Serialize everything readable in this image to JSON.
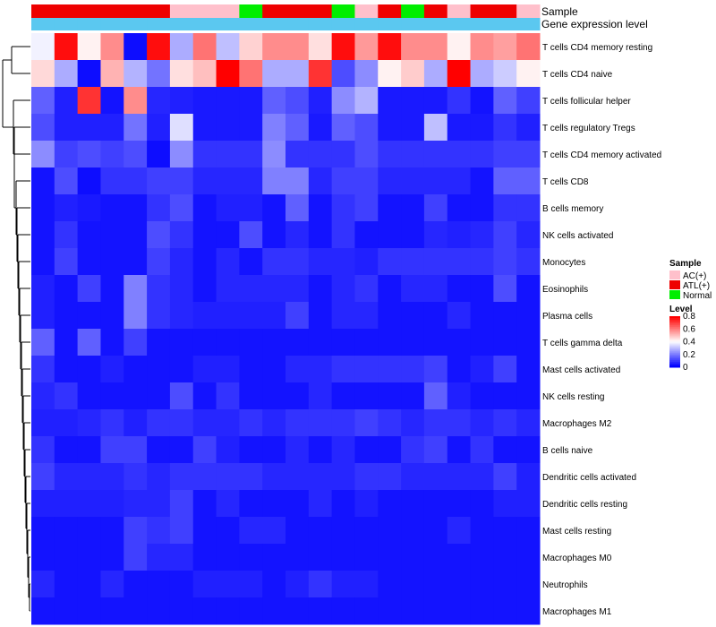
{
  "chart_data": {
    "type": "heatmap",
    "title": "",
    "annotation_labels": {
      "sample": "Sample",
      "gene_expression": "Gene expression level"
    },
    "sample_groups": [
      "ATL(+)",
      "ATL(+)",
      "ATL(+)",
      "ATL(+)",
      "ATL(+)",
      "ATL(+)",
      "AC(+)",
      "AC(+)",
      "AC(+)",
      "Normal",
      "ATL(+)",
      "ATL(+)",
      "ATL(+)",
      "Normal",
      "AC(+)",
      "ATL(+)",
      "Normal",
      "ATL(+)",
      "AC(+)",
      "ATL(+)",
      "ATL(+)",
      "AC(+)"
    ],
    "rows": [
      "T cells CD4 memory resting",
      "T cells CD4 naive",
      "T cells follicular helper",
      "T cells regulatory  Tregs",
      "T cells CD4 memory activated",
      "T cells CD8",
      "B cells memory",
      "NK cells activated",
      "Monocytes",
      "Eosinophils",
      "Plasma cells",
      "T cells gamma delta",
      "Mast cells activated",
      "NK cells resting",
      "Macrophages M2",
      "B cells naive",
      "Dendritic cells activated",
      "Dendritic cells resting",
      "Mast cells resting",
      "Macrophages M0",
      "Neutrophils",
      "Macrophages M1"
    ],
    "values": [
      [
        0.38,
        0.78,
        0.42,
        0.58,
        0.02,
        0.78,
        0.27,
        0.62,
        0.3,
        0.47,
        0.58,
        0.58,
        0.45,
        0.78,
        0.56,
        0.78,
        0.58,
        0.58,
        0.42,
        0.58,
        0.55,
        0.62
      ],
      [
        0.46,
        0.27,
        0.02,
        0.52,
        0.28,
        0.18,
        0.45,
        0.5,
        0.8,
        0.62,
        0.27,
        0.27,
        0.72,
        0.12,
        0.22,
        0.42,
        0.48,
        0.27,
        0.8,
        0.27,
        0.32,
        0.42
      ],
      [
        0.15,
        0.05,
        0.72,
        0.03,
        0.58,
        0.06,
        0.05,
        0.04,
        0.04,
        0.04,
        0.15,
        0.12,
        0.05,
        0.22,
        0.28,
        0.04,
        0.04,
        0.04,
        0.08,
        0.03,
        0.15,
        0.1
      ],
      [
        0.12,
        0.05,
        0.05,
        0.05,
        0.18,
        0.05,
        0.35,
        0.04,
        0.04,
        0.04,
        0.2,
        0.15,
        0.04,
        0.15,
        0.12,
        0.04,
        0.04,
        0.3,
        0.04,
        0.04,
        0.08,
        0.05
      ],
      [
        0.22,
        0.1,
        0.12,
        0.1,
        0.12,
        0.02,
        0.22,
        0.08,
        0.08,
        0.08,
        0.22,
        0.08,
        0.08,
        0.08,
        0.12,
        0.08,
        0.08,
        0.08,
        0.08,
        0.08,
        0.1,
        0.1
      ],
      [
        0.03,
        0.12,
        0.02,
        0.08,
        0.08,
        0.1,
        0.1,
        0.06,
        0.06,
        0.06,
        0.2,
        0.2,
        0.06,
        0.1,
        0.1,
        0.06,
        0.06,
        0.06,
        0.06,
        0.03,
        0.15,
        0.15
      ],
      [
        0.03,
        0.05,
        0.04,
        0.03,
        0.03,
        0.08,
        0.12,
        0.03,
        0.05,
        0.05,
        0.03,
        0.15,
        0.03,
        0.08,
        0.1,
        0.03,
        0.03,
        0.1,
        0.03,
        0.03,
        0.08,
        0.08
      ],
      [
        0.03,
        0.08,
        0.03,
        0.03,
        0.03,
        0.12,
        0.08,
        0.03,
        0.03,
        0.12,
        0.03,
        0.06,
        0.03,
        0.08,
        0.03,
        0.03,
        0.03,
        0.06,
        0.05,
        0.06,
        0.1,
        0.06
      ],
      [
        0.03,
        0.1,
        0.03,
        0.03,
        0.03,
        0.1,
        0.06,
        0.03,
        0.06,
        0.03,
        0.08,
        0.08,
        0.06,
        0.06,
        0.05,
        0.08,
        0.08,
        0.08,
        0.08,
        0.08,
        0.1,
        0.08
      ],
      [
        0.05,
        0.03,
        0.1,
        0.03,
        0.2,
        0.08,
        0.06,
        0.03,
        0.06,
        0.06,
        0.06,
        0.06,
        0.03,
        0.06,
        0.08,
        0.03,
        0.06,
        0.06,
        0.03,
        0.03,
        0.12,
        0.03
      ],
      [
        0.05,
        0.03,
        0.03,
        0.03,
        0.2,
        0.08,
        0.06,
        0.05,
        0.05,
        0.05,
        0.05,
        0.1,
        0.03,
        0.06,
        0.06,
        0.03,
        0.03,
        0.03,
        0.06,
        0.03,
        0.03,
        0.03
      ],
      [
        0.15,
        0.03,
        0.15,
        0.03,
        0.1,
        0.03,
        0.03,
        0.03,
        0.03,
        0.03,
        0.03,
        0.03,
        0.03,
        0.03,
        0.03,
        0.03,
        0.03,
        0.03,
        0.03,
        0.03,
        0.03,
        0.03
      ],
      [
        0.08,
        0.03,
        0.03,
        0.05,
        0.03,
        0.03,
        0.03,
        0.05,
        0.05,
        0.03,
        0.03,
        0.06,
        0.06,
        0.08,
        0.08,
        0.08,
        0.08,
        0.1,
        0.03,
        0.05,
        0.1,
        0.03
      ],
      [
        0.06,
        0.08,
        0.03,
        0.03,
        0.03,
        0.03,
        0.12,
        0.03,
        0.08,
        0.03,
        0.03,
        0.03,
        0.06,
        0.03,
        0.03,
        0.03,
        0.03,
        0.15,
        0.05,
        0.03,
        0.03,
        0.03
      ],
      [
        0.05,
        0.05,
        0.06,
        0.08,
        0.05,
        0.08,
        0.08,
        0.06,
        0.06,
        0.08,
        0.06,
        0.08,
        0.08,
        0.08,
        0.1,
        0.08,
        0.06,
        0.08,
        0.08,
        0.06,
        0.08,
        0.06
      ],
      [
        0.08,
        0.03,
        0.03,
        0.1,
        0.1,
        0.03,
        0.03,
        0.1,
        0.05,
        0.03,
        0.03,
        0.06,
        0.03,
        0.06,
        0.03,
        0.03,
        0.08,
        0.1,
        0.03,
        0.08,
        0.03,
        0.03
      ],
      [
        0.1,
        0.06,
        0.06,
        0.06,
        0.08,
        0.06,
        0.08,
        0.08,
        0.08,
        0.08,
        0.06,
        0.06,
        0.06,
        0.06,
        0.08,
        0.08,
        0.06,
        0.06,
        0.06,
        0.06,
        0.1,
        0.05
      ],
      [
        0.05,
        0.05,
        0.05,
        0.05,
        0.06,
        0.06,
        0.1,
        0.03,
        0.06,
        0.03,
        0.03,
        0.03,
        0.06,
        0.03,
        0.05,
        0.03,
        0.03,
        0.03,
        0.03,
        0.03,
        0.05,
        0.05
      ],
      [
        0.03,
        0.03,
        0.03,
        0.03,
        0.1,
        0.08,
        0.1,
        0.03,
        0.03,
        0.06,
        0.06,
        0.03,
        0.03,
        0.03,
        0.03,
        0.03,
        0.03,
        0.03,
        0.06,
        0.03,
        0.03,
        0.03
      ],
      [
        0.03,
        0.03,
        0.03,
        0.03,
        0.1,
        0.06,
        0.06,
        0.03,
        0.03,
        0.03,
        0.03,
        0.03,
        0.03,
        0.03,
        0.03,
        0.03,
        0.03,
        0.03,
        0.03,
        0.03,
        0.03,
        0.03
      ],
      [
        0.06,
        0.03,
        0.03,
        0.06,
        0.03,
        0.03,
        0.03,
        0.05,
        0.05,
        0.05,
        0.03,
        0.05,
        0.08,
        0.05,
        0.05,
        0.03,
        0.03,
        0.03,
        0.03,
        0.03,
        0.03,
        0.03
      ],
      [
        0.03,
        0.03,
        0.03,
        0.03,
        0.03,
        0.03,
        0.03,
        0.03,
        0.03,
        0.03,
        0.03,
        0.03,
        0.03,
        0.03,
        0.03,
        0.03,
        0.03,
        0.03,
        0.03,
        0.03,
        0.03,
        0.03
      ]
    ],
    "legend": {
      "sample_title": "Sample",
      "sample_entries": [
        {
          "label": "AC(+)",
          "color": "#FFC0CB"
        },
        {
          "label": "ATL(+)",
          "color": "#EE0000"
        },
        {
          "label": "Normal",
          "color": "#00EE00"
        }
      ],
      "level_title": "Level",
      "level_ticks": [
        "0.8",
        "0.6",
        "0.4",
        "0.2",
        "0"
      ],
      "level_range": [
        0,
        0.8
      ],
      "placement": "right"
    },
    "colors": {
      "low": "#0000FF",
      "mid": "#FFFFFF",
      "high": "#FF0000",
      "gene_expression_bar": "#5BC8F0",
      "dendrogram": "#000000"
    },
    "row_dendrogram": true
  }
}
